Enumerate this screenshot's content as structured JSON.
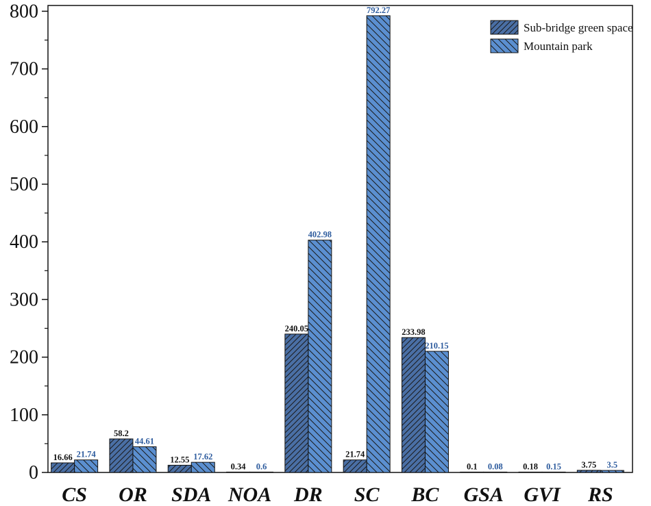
{
  "chart_data": {
    "type": "bar",
    "categories": [
      "CS",
      "OR",
      "SDA",
      "NOA",
      "DR",
      "SC",
      "BC",
      "GSA",
      "GVI",
      "RS"
    ],
    "series": [
      {
        "name": "Sub-bridge green space",
        "values": [
          16.66,
          58.2,
          12.55,
          0.34,
          240.05,
          21.74,
          233.98,
          0.1,
          0.18,
          3.75
        ],
        "labels": [
          "16.66",
          "58.2",
          "12.55",
          "0.34",
          "240.05",
          "21.74",
          "233.98",
          "0.1",
          "0.18",
          "3.75"
        ],
        "color": "#4a6fa5",
        "label_color": "#111111",
        "hatch": "diagonal-up"
      },
      {
        "name": "Mountain park",
        "values": [
          21.74,
          44.61,
          17.62,
          0.6,
          402.98,
          792.27,
          210.15,
          0.08,
          0.15,
          3.5
        ],
        "labels": [
          "21.74",
          "44.61",
          "17.62",
          "0.6",
          "402.98",
          "792.27",
          "210.15",
          "0.08",
          "0.15",
          "3.5"
        ],
        "color": "#5b8fd0",
        "label_color": "#2e5c9e",
        "hatch": "diagonal-down"
      }
    ],
    "ylim": [
      0,
      810
    ],
    "yticks": [
      0,
      100,
      200,
      300,
      400,
      500,
      600,
      700,
      800
    ],
    "yticklabels": [
      "0",
      "100",
      "200",
      "300",
      "400",
      "500",
      "600",
      "700",
      "800"
    ],
    "legend_position": "top-right",
    "grid": false
  }
}
